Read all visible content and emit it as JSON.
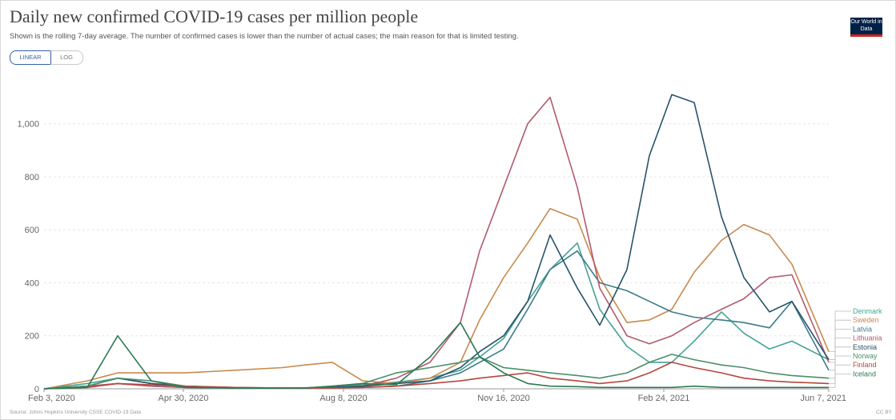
{
  "header": {
    "title": "Daily new confirmed COVID-19 cases per million people",
    "subtitle": "Shown is the rolling 7-day average. The number of confirmed cases is lower than the number of actual cases; the main reason for that is limited testing.",
    "scale_linear": "LINEAR",
    "scale_log": "LOG",
    "logo": "Our World in Data"
  },
  "footer": {
    "source": "Source: Johns Hopkins University CSSE COVID-19 Data",
    "license": "CC BY"
  },
  "colors": {
    "grid": "#e6e6e6",
    "axis": "#999999",
    "logo_bg": "#002147",
    "logo_accent": "#ce261e",
    "active_toggle": "#3360a9"
  },
  "chart_data": {
    "type": "line",
    "title": "Daily new confirmed COVID-19 cases per million people",
    "x_ticks": [
      "Feb 3, 2020",
      "Apr 30, 2020",
      "Aug 8, 2020",
      "Nov 16, 2020",
      "Feb 24, 2021",
      "Jun 7, 2021"
    ],
    "x": [
      "2020-02-03",
      "2020-03-01",
      "2020-03-20",
      "2020-04-10",
      "2020-05-01",
      "2020-06-01",
      "2020-07-01",
      "2020-07-15",
      "2020-08-01",
      "2020-08-20",
      "2020-09-10",
      "2020-10-01",
      "2020-10-20",
      "2020-11-01",
      "2020-11-16",
      "2020-12-01",
      "2020-12-15",
      "2021-01-01",
      "2021-01-15",
      "2021-02-01",
      "2021-02-15",
      "2021-03-01",
      "2021-03-15",
      "2021-04-01",
      "2021-04-15",
      "2021-05-01",
      "2021-05-15",
      "2021-06-07"
    ],
    "yticks": [
      0,
      200,
      400,
      600,
      800,
      1000
    ],
    "ylim": [
      0,
      1150
    ],
    "grid": true,
    "legend_position": "right",
    "series": [
      {
        "name": "Denmark",
        "color": "#44a394",
        "values": [
          0,
          20,
          40,
          20,
          10,
          5,
          3,
          4,
          5,
          15,
          25,
          40,
          70,
          120,
          190,
          330,
          450,
          550,
          300,
          160,
          100,
          100,
          180,
          290,
          210,
          150,
          180,
          110
        ]
      },
      {
        "name": "Sweden",
        "color": "#c78a4e",
        "values": [
          0,
          30,
          60,
          60,
          60,
          70,
          80,
          90,
          100,
          30,
          20,
          40,
          100,
          260,
          420,
          550,
          680,
          640,
          420,
          250,
          260,
          300,
          440,
          560,
          620,
          580,
          470,
          140
        ]
      },
      {
        "name": "Latvia",
        "color": "#3b7c8a",
        "values": [
          0,
          10,
          20,
          10,
          5,
          3,
          3,
          3,
          5,
          5,
          10,
          30,
          60,
          100,
          150,
          300,
          450,
          520,
          400,
          370,
          330,
          290,
          270,
          260,
          250,
          230,
          330,
          70
        ]
      },
      {
        "name": "Lithuania",
        "color": "#b45a6e",
        "values": [
          0,
          10,
          20,
          10,
          5,
          3,
          3,
          3,
          5,
          10,
          40,
          100,
          250,
          520,
          760,
          1000,
          1100,
          760,
          380,
          200,
          170,
          200,
          250,
          300,
          340,
          420,
          430,
          100
        ]
      },
      {
        "name": "Estonia",
        "color": "#27536b",
        "values": [
          0,
          10,
          40,
          20,
          10,
          3,
          3,
          3,
          5,
          10,
          20,
          30,
          80,
          140,
          200,
          330,
          580,
          380,
          240,
          450,
          880,
          1110,
          1080,
          650,
          420,
          290,
          330,
          110
        ]
      },
      {
        "name": "Norway",
        "color": "#4a8f68",
        "values": [
          0,
          10,
          40,
          30,
          10,
          3,
          3,
          3,
          10,
          20,
          60,
          80,
          100,
          120,
          80,
          70,
          60,
          50,
          40,
          60,
          100,
          130,
          110,
          90,
          80,
          60,
          50,
          40
        ]
      },
      {
        "name": "Finland",
        "color": "#b5473e",
        "values": [
          0,
          5,
          20,
          15,
          10,
          5,
          3,
          3,
          3,
          5,
          10,
          20,
          30,
          40,
          50,
          60,
          40,
          30,
          20,
          30,
          60,
          100,
          80,
          60,
          40,
          30,
          25,
          20
        ]
      },
      {
        "name": "Iceland",
        "color": "#2d7a53",
        "values": [
          0,
          5,
          200,
          30,
          5,
          3,
          3,
          3,
          10,
          20,
          15,
          120,
          250,
          120,
          60,
          20,
          10,
          8,
          5,
          5,
          5,
          5,
          10,
          5,
          5,
          5,
          5,
          5
        ]
      }
    ]
  }
}
